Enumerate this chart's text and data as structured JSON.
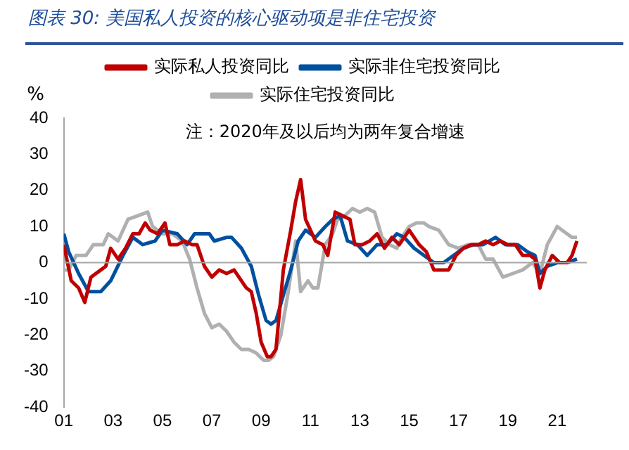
{
  "chart_data": {
    "type": "line",
    "title": "图表 30: 美国私人投资的核心驱动项是非住宅投资",
    "ylabel": "%",
    "annotations": [
      "注：2020年及以后均为两年复合增速"
    ],
    "legend": "top",
    "grid": false,
    "ref_lines": [
      {
        "axis": "y",
        "value": 0,
        "color": "#a6a6a6"
      }
    ],
    "marker": "none",
    "line_style": "solid",
    "xlim": [
      2001,
      2022.2
    ],
    "xticks": [
      {
        "value": 2001,
        "label": "01"
      },
      {
        "value": 2003,
        "label": "03"
      },
      {
        "value": 2005,
        "label": "05"
      },
      {
        "value": 2007,
        "label": "07"
      },
      {
        "value": 2009,
        "label": "09"
      },
      {
        "value": 2011,
        "label": "11"
      },
      {
        "value": 2013,
        "label": "13"
      },
      {
        "value": 2015,
        "label": "15"
      },
      {
        "value": 2017,
        "label": "17"
      },
      {
        "value": 2019,
        "label": "19"
      },
      {
        "value": 2021,
        "label": "21"
      }
    ],
    "ylim": [
      -40,
      40
    ],
    "yticks": [
      -40,
      -30,
      -20,
      -10,
      0,
      10,
      20,
      30,
      40
    ],
    "series": [
      {
        "name": "实际私人投资同比",
        "color": "#c00000",
        "x": [
          2001.0,
          2001.3,
          2001.6,
          2001.85,
          2002.1,
          2002.5,
          2002.7,
          2002.9,
          2003.2,
          2003.5,
          2003.8,
          2004.05,
          2004.3,
          2004.5,
          2004.8,
          2005.1,
          2005.3,
          2005.6,
          2005.9,
          2006.2,
          2006.4,
          2006.7,
          2007.0,
          2007.3,
          2007.6,
          2007.9,
          2008.2,
          2008.4,
          2008.6,
          2008.8,
          2009.0,
          2009.25,
          2009.4,
          2009.6,
          2009.9,
          2010.2,
          2010.4,
          2010.6,
          2010.8,
          2011.2,
          2011.5,
          2011.7,
          2012.0,
          2012.3,
          2012.6,
          2012.8,
          2013.1,
          2013.4,
          2013.7,
          2014.0,
          2014.3,
          2014.6,
          2015.0,
          2015.4,
          2015.7,
          2016.0,
          2016.3,
          2016.6,
          2016.9,
          2017.2,
          2017.5,
          2017.8,
          2018.1,
          2018.4,
          2018.7,
          2019.0,
          2019.3,
          2019.6,
          2019.9,
          2020.1,
          2020.3,
          2020.5,
          2020.8,
          2021.1,
          2021.4,
          2021.6,
          2021.8
        ],
        "values": [
          5,
          -5,
          -7,
          -11,
          -4,
          -2,
          -1,
          4,
          1,
          4,
          8,
          8,
          11,
          9,
          8,
          11,
          5,
          5,
          6,
          5,
          5,
          -1,
          -4,
          -2,
          -3,
          -2,
          -5,
          -7,
          -8,
          -14,
          -22,
          -26,
          -26,
          -24,
          -2,
          9,
          17,
          23,
          12,
          6,
          5,
          2,
          14,
          13,
          12,
          5,
          5,
          6,
          8,
          4,
          7,
          5,
          9,
          5,
          3,
          -2,
          -2,
          -2,
          2,
          4,
          5,
          5,
          6,
          5,
          6,
          5,
          5,
          2,
          2,
          1,
          -7,
          -2,
          2,
          0,
          0,
          2,
          6
        ]
      },
      {
        "name": "实际非住宅投资同比",
        "color": "#0050a0",
        "x": [
          2001.0,
          2001.2,
          2001.6,
          2002.0,
          2002.5,
          2002.9,
          2003.4,
          2003.8,
          2004.2,
          2004.7,
          2005.0,
          2005.6,
          2006.0,
          2006.3,
          2006.9,
          2007.1,
          2007.6,
          2007.8,
          2008.2,
          2008.6,
          2008.9,
          2009.2,
          2009.4,
          2009.6,
          2009.9,
          2010.2,
          2010.5,
          2010.8,
          2011.2,
          2011.6,
          2011.9,
          2012.2,
          2012.5,
          2012.9,
          2013.3,
          2013.7,
          2014.1,
          2014.5,
          2014.8,
          2015.2,
          2015.6,
          2016.0,
          2016.4,
          2016.8,
          2017.2,
          2017.6,
          2018.0,
          2018.5,
          2018.9,
          2019.4,
          2019.8,
          2020.1,
          2020.3,
          2020.6,
          2021.0,
          2021.4,
          2021.8
        ],
        "values": [
          8,
          3,
          -3,
          -8,
          -8,
          -5,
          2,
          7,
          5,
          6,
          9,
          8,
          5,
          8,
          8,
          6,
          7,
          7,
          4,
          -1,
          -9,
          -16,
          -17,
          -16,
          -9,
          -2,
          6,
          9,
          7,
          10,
          12,
          13,
          6,
          5,
          2,
          5,
          5,
          8,
          7,
          4,
          2,
          0,
          0,
          2,
          4,
          5,
          5,
          7,
          5,
          5,
          3,
          2,
          -3,
          -1,
          0,
          0,
          1
        ]
      },
      {
        "name": "实际住宅投资同比",
        "color": "#b0b0b0",
        "x": [
          2001.0,
          2001.2,
          2001.5,
          2001.7,
          2001.9,
          2002.2,
          2002.6,
          2002.8,
          2003.2,
          2003.6,
          2004.0,
          2004.4,
          2004.6,
          2005.0,
          2005.4,
          2005.8,
          2006.1,
          2006.4,
          2006.7,
          2007.0,
          2007.3,
          2007.6,
          2007.9,
          2008.2,
          2008.5,
          2008.8,
          2009.1,
          2009.3,
          2009.5,
          2009.8,
          2010.1,
          2010.4,
          2010.6,
          2010.9,
          2011.1,
          2011.3,
          2011.6,
          2011.9,
          2012.1,
          2012.4,
          2012.7,
          2013.0,
          2013.3,
          2013.6,
          2013.9,
          2014.2,
          2014.5,
          2014.7,
          2015.0,
          2015.3,
          2015.6,
          2015.8,
          2016.2,
          2016.6,
          2017.0,
          2017.4,
          2017.8,
          2018.1,
          2018.4,
          2018.8,
          2019.2,
          2019.6,
          2020.0,
          2020.3,
          2020.6,
          2021.0,
          2021.4,
          2021.6,
          2021.8
        ],
        "values": [
          -2,
          -2,
          2,
          2,
          2,
          5,
          5,
          8,
          6,
          12,
          13,
          14,
          10,
          8,
          8,
          6,
          1,
          -7,
          -14,
          -18,
          -17,
          -19,
          -22,
          -24,
          -24,
          -25,
          -27,
          -27,
          -26,
          -20,
          -8,
          6,
          -8,
          -5,
          -7,
          -7,
          5,
          8,
          12,
          13,
          15,
          14,
          15,
          14,
          7,
          5,
          4,
          7,
          10,
          11,
          11,
          10,
          9,
          5,
          4,
          5,
          5,
          1,
          1,
          -4,
          -3,
          -2,
          0,
          -3,
          5,
          10,
          8,
          7,
          7
        ]
      }
    ]
  }
}
